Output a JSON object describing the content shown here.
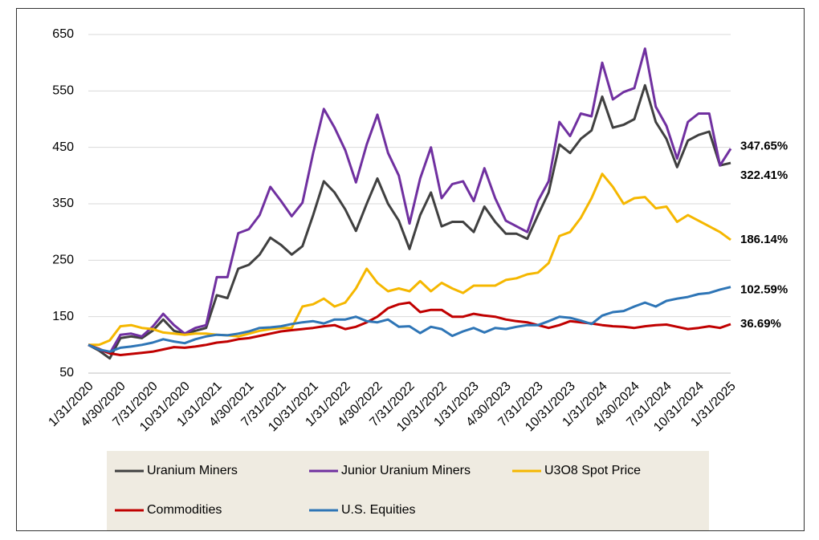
{
  "chart_data": {
    "type": "line",
    "categories": [
      "1/31/2020",
      null,
      null,
      "4/30/2020",
      null,
      null,
      "7/31/2020",
      null,
      null,
      "10/31/2020",
      null,
      null,
      "1/31/2021",
      null,
      null,
      "4/30/2021",
      null,
      null,
      "7/31/2021",
      null,
      null,
      "10/31/2021",
      null,
      null,
      "1/31/2022",
      null,
      null,
      "4/30/2022",
      null,
      null,
      "7/31/2022",
      null,
      null,
      "10/31/2022",
      null,
      null,
      "1/31/2023",
      null,
      null,
      "4/30/2023",
      null,
      null,
      "7/31/2023",
      null,
      null,
      "10/31/2023",
      null,
      null,
      "1/31/2024",
      null,
      null,
      "4/30/2024",
      null,
      null,
      "7/31/2024",
      null,
      null,
      "10/31/2024",
      null,
      null,
      "1/31/2025"
    ],
    "series": [
      {
        "name": "Uranium Miners",
        "color": "#404040",
        "end_label": "322.41%",
        "values": [
          100,
          90,
          76,
          112,
          115,
          112,
          125,
          145,
          125,
          120,
          125,
          130,
          188,
          183,
          235,
          242,
          260,
          290,
          277,
          260,
          275,
          330,
          390,
          370,
          340,
          302,
          350,
          395,
          350,
          320,
          270,
          330,
          370,
          310,
          318,
          318,
          300,
          345,
          318,
          297,
          297,
          288,
          330,
          370,
          455,
          440,
          465,
          480,
          540,
          485,
          490,
          500,
          560,
          495,
          465,
          415,
          462,
          472,
          478,
          418,
          422.41
        ]
      },
      {
        "name": "Junior Uranium Miners",
        "color": "#7030a0",
        "end_label": "347.65%",
        "values": [
          100,
          92,
          85,
          118,
          120,
          115,
          132,
          155,
          135,
          120,
          130,
          135,
          220,
          220,
          298,
          305,
          330,
          380,
          355,
          328,
          352,
          440,
          518,
          485,
          445,
          388,
          455,
          508,
          440,
          400,
          315,
          395,
          450,
          360,
          385,
          390,
          355,
          413,
          360,
          320,
          310,
          300,
          355,
          390,
          495,
          470,
          510,
          505,
          600,
          535,
          548,
          555,
          625,
          522,
          488,
          430,
          495,
          510,
          510,
          418,
          447.65
        ]
      },
      {
        "name": "U3O8 Spot Price",
        "color": "#f5b700",
        "end_label": "186.14%",
        "values": [
          100,
          100,
          108,
          133,
          135,
          130,
          128,
          122,
          120,
          118,
          120,
          120,
          118,
          117,
          115,
          120,
          125,
          128,
          130,
          130,
          168,
          172,
          182,
          168,
          175,
          200,
          235,
          210,
          195,
          200,
          195,
          213,
          195,
          210,
          200,
          192,
          205,
          205,
          205,
          215,
          218,
          225,
          228,
          245,
          293,
          300,
          325,
          360,
          403,
          380,
          350,
          360,
          362,
          342,
          345,
          318,
          330,
          320,
          310,
          300,
          286.14
        ]
      },
      {
        "name": "Commodities",
        "color": "#c00000",
        "end_label": "36.69%",
        "end_label_color": "#e0202a",
        "values": [
          100,
          93,
          85,
          82,
          84,
          86,
          88,
          92,
          96,
          95,
          97,
          100,
          104,
          106,
          110,
          112,
          116,
          120,
          124,
          126,
          128,
          130,
          133,
          135,
          128,
          132,
          140,
          150,
          165,
          172,
          175,
          158,
          162,
          162,
          150,
          150,
          155,
          152,
          150,
          145,
          142,
          140,
          135,
          130,
          135,
          142,
          140,
          138,
          135,
          133,
          132,
          130,
          133,
          135,
          136,
          132,
          128,
          130,
          133,
          130,
          136.69
        ]
      },
      {
        "name": "U.S. Equities",
        "color": "#2e75b6",
        "end_label": "102.59%",
        "values": [
          100,
          92,
          88,
          95,
          97,
          100,
          104,
          110,
          106,
          103,
          110,
          115,
          118,
          117,
          120,
          124,
          130,
          131,
          133,
          137,
          140,
          142,
          138,
          145,
          145,
          150,
          142,
          140,
          145,
          132,
          133,
          121,
          132,
          128,
          116,
          124,
          130,
          122,
          130,
          128,
          132,
          135,
          135,
          142,
          150,
          148,
          143,
          137,
          152,
          158,
          160,
          168,
          175,
          168,
          178,
          182,
          185,
          190,
          192,
          198,
          202.59
        ]
      }
    ],
    "ylim": [
      50,
      650
    ],
    "yticks": [
      50,
      150,
      250,
      350,
      450,
      550,
      650
    ],
    "grid": true
  }
}
